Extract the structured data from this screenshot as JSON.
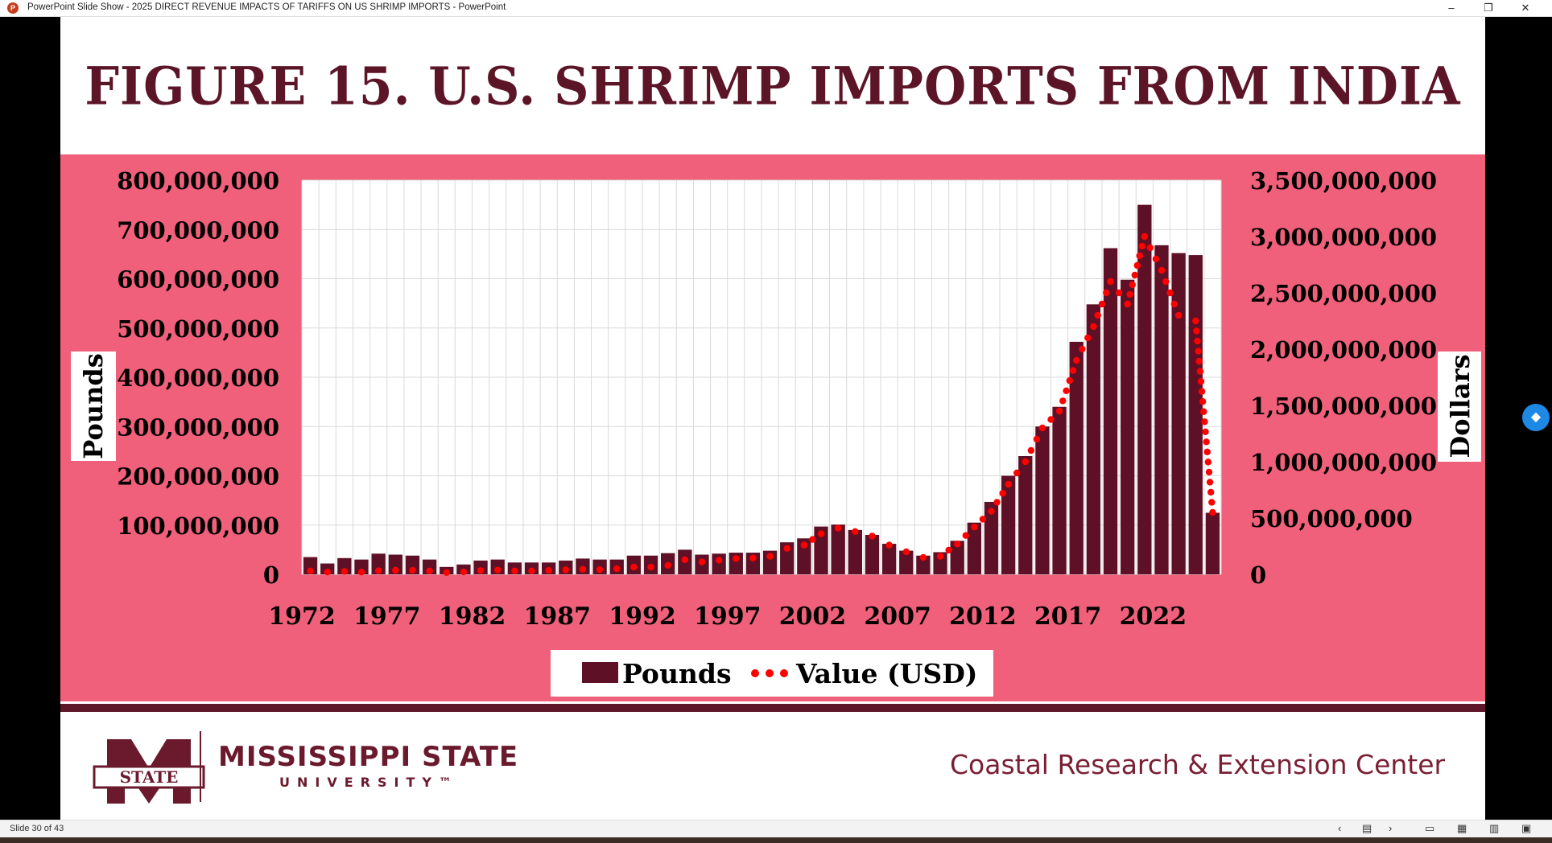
{
  "window": {
    "title": "PowerPoint Slide Show  -  2025 DIRECT REVENUE IMPACTS OF TARIFFS ON US SHRIMP IMPORTS - PowerPoint",
    "icon": "powerpoint-icon",
    "controls": {
      "minimize": "–",
      "restore": "❐",
      "close": "✕"
    }
  },
  "slide": {
    "title": "FIGURE 15. U.S. SHRIMP IMPORTS FROM INDIA",
    "footer": {
      "university": "MISSISSIPPI STATE",
      "university_sub": "UNIVERSITY™",
      "logo_text": "STATE",
      "center": "Coastal Research & Extension Center"
    }
  },
  "status": {
    "slide_counter": "Slide 30 of 43"
  },
  "colors": {
    "band": "#f0607a",
    "bars": "#5e1026",
    "dots": "#ff0000",
    "title": "#5c1526"
  },
  "chart_data": {
    "type": "bar",
    "title": "",
    "x": [
      1972,
      1973,
      1974,
      1975,
      1976,
      1977,
      1978,
      1979,
      1980,
      1981,
      1982,
      1983,
      1984,
      1985,
      1986,
      1987,
      1988,
      1989,
      1990,
      1991,
      1992,
      1993,
      1994,
      1995,
      1996,
      1997,
      1998,
      1999,
      2000,
      2001,
      2002,
      2003,
      2004,
      2005,
      2006,
      2007,
      2008,
      2009,
      2010,
      2011,
      2012,
      2013,
      2014,
      2015,
      2016,
      2017,
      2018,
      2019,
      2020,
      2021,
      2022,
      2023,
      2024,
      2025
    ],
    "x_tick_labels": [
      "1972",
      "1977",
      "1982",
      "1987",
      "1992",
      "1997",
      "2002",
      "2007",
      "2012",
      "2017",
      "2022"
    ],
    "ylabel": "Pounds",
    "y2label": "Dollars",
    "ylim": [
      0,
      800000000
    ],
    "y2lim": [
      0,
      3500000000
    ],
    "y_ticks": [
      "0",
      "100,000,000",
      "200,000,000",
      "300,000,000",
      "400,000,000",
      "500,000,000",
      "600,000,000",
      "700,000,000",
      "800,000,000"
    ],
    "y2_ticks": [
      "0",
      "500,000,000",
      "1,000,000,000",
      "1,500,000,000",
      "2,000,000,000",
      "2,500,000,000",
      "3,000,000,000",
      "3,500,000,000"
    ],
    "grid": true,
    "legend_position": "bottom",
    "series": [
      {
        "name": "Pounds",
        "kind": "bar",
        "axis": "left",
        "values": [
          35000000,
          22000000,
          33000000,
          30000000,
          42000000,
          40000000,
          38000000,
          30000000,
          15000000,
          20000000,
          28000000,
          30000000,
          24000000,
          24000000,
          24000000,
          28000000,
          32000000,
          30000000,
          30000000,
          38000000,
          38000000,
          43000000,
          50000000,
          40000000,
          42000000,
          44000000,
          44000000,
          48000000,
          65000000,
          73000000,
          97000000,
          101000000,
          90000000,
          80000000,
          62000000,
          48000000,
          38000000,
          45000000,
          68000000,
          105000000,
          147000000,
          200000000,
          240000000,
          300000000,
          340000000,
          472000000,
          548000000,
          662000000,
          598000000,
          750000000,
          668000000,
          652000000,
          648000000,
          125000000
        ]
      },
      {
        "name": "Value (USD)",
        "kind": "dotted-line",
        "axis": "right",
        "values": [
          30000000,
          20000000,
          26000000,
          20000000,
          32000000,
          35000000,
          36000000,
          30000000,
          16000000,
          22000000,
          33000000,
          38000000,
          30000000,
          30000000,
          35000000,
          40000000,
          45000000,
          42000000,
          50000000,
          65000000,
          65000000,
          80000000,
          130000000,
          110000000,
          125000000,
          140000000,
          145000000,
          160000000,
          230000000,
          260000000,
          360000000,
          410000000,
          380000000,
          340000000,
          260000000,
          200000000,
          150000000,
          160000000,
          270000000,
          420000000,
          560000000,
          800000000,
          1000000000,
          1300000000,
          1450000000,
          1900000000,
          2200000000,
          2600000000,
          2400000000,
          3000000000,
          2700000000,
          2300000000,
          2250000000,
          550000000
        ]
      }
    ]
  }
}
